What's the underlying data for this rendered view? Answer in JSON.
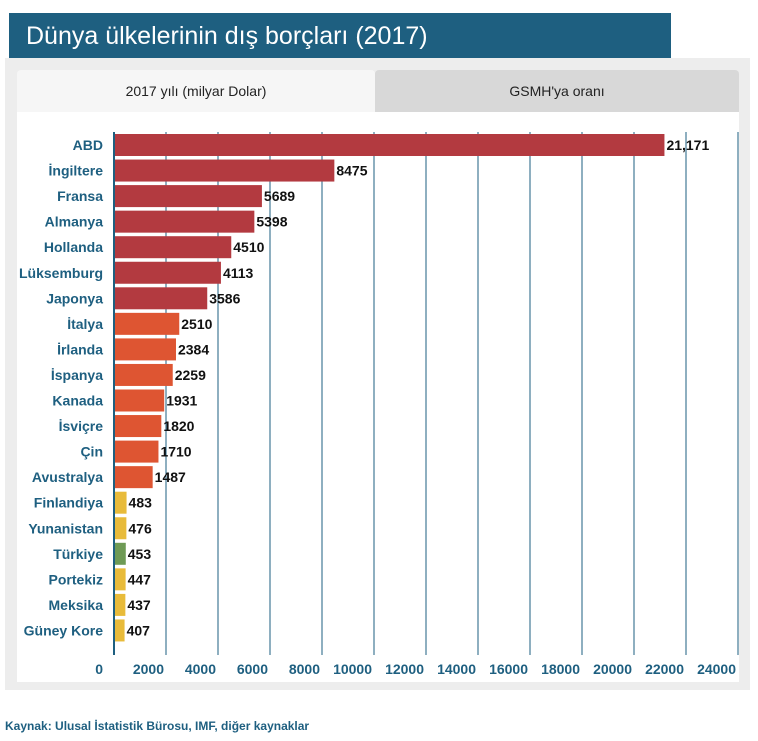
{
  "title": "Dünya ülkelerinin dış borçları (2017)",
  "tabs": [
    {
      "label": "2017 yılı (milyar Dolar)",
      "active": true
    },
    {
      "label": "GSMH'ya oranı",
      "active": false
    }
  ],
  "source": "Kaynak: Ulusal İstatistik Bürosu, IMF, diğer kaynaklar",
  "colors": {
    "header": "#1e5f80",
    "dark_red": "#b33a40",
    "orange": "#de5532",
    "yellow": "#e8bb3a",
    "green": "#6e9a55",
    "axis": "#1e5f80",
    "label": "#1e5f80"
  },
  "chart_data": {
    "type": "bar",
    "orientation": "horizontal",
    "title": "Dünya ülkelerinin dış borçları (2017)",
    "xlabel": "",
    "ylabel": "",
    "xlim": [
      0,
      24000
    ],
    "ticks": [
      0,
      2000,
      4000,
      6000,
      8000,
      10000,
      12000,
      14000,
      16000,
      18000,
      20000,
      22000,
      24000
    ],
    "tick_labels": [
      "0",
      "2000",
      "4000",
      "6000",
      "8000",
      "10000",
      "12000",
      "14000",
      "16000",
      "18000",
      "20000",
      "22000",
      "24000"
    ],
    "grid": true,
    "categories": [
      "ABD",
      "İngiltere",
      "Fransa",
      "Almanya",
      "Hollanda",
      "Lüksemburg",
      "Japonya",
      "İtalya",
      "İrlanda",
      "İspanya",
      "Kanada",
      "İsviçre",
      "Çin",
      "Avustralya",
      "Finlandiya",
      "Yunanistan",
      "Türkiye",
      "Portekiz",
      "Meksika",
      "Güney Kore"
    ],
    "values": [
      21171,
      8475,
      5689,
      5398,
      4510,
      4113,
      3586,
      2510,
      2384,
      2259,
      1931,
      1820,
      1710,
      1487,
      483,
      476,
      453,
      447,
      437,
      407
    ],
    "value_labels": [
      "21,171",
      "8475",
      "5689",
      "5398",
      "4510",
      "4113",
      "3586",
      "2510",
      "2384",
      "2259",
      "1931",
      "1820",
      "1710",
      "1487",
      "483",
      "476",
      "453",
      "447",
      "437",
      "407"
    ],
    "bar_colors": [
      "#b33a40",
      "#b33a40",
      "#b33a40",
      "#b33a40",
      "#b33a40",
      "#b33a40",
      "#b33a40",
      "#de5532",
      "#de5532",
      "#de5532",
      "#de5532",
      "#de5532",
      "#de5532",
      "#de5532",
      "#e8bb3a",
      "#e8bb3a",
      "#6e9a55",
      "#e8bb3a",
      "#e8bb3a",
      "#e8bb3a"
    ]
  }
}
